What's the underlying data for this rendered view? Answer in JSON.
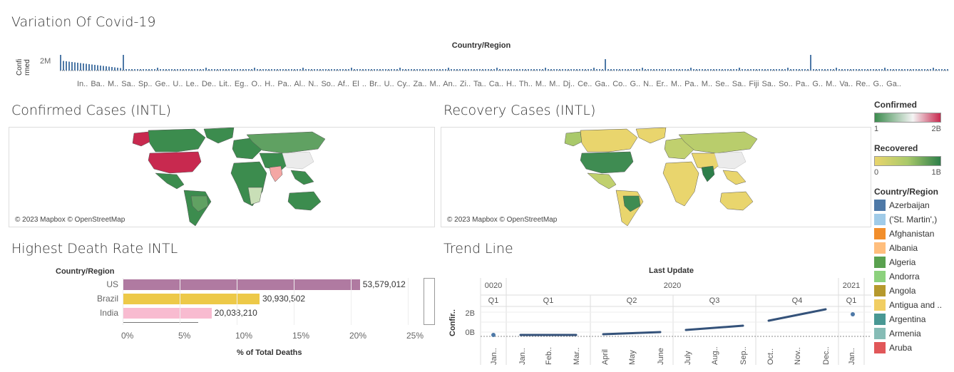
{
  "dashboard": {
    "title": "Variation Of Covid-19"
  },
  "top_chart": {
    "header": "Country/Region",
    "y_axis_label": "Confi rmed",
    "y_tick": "2M",
    "category_labels": "In.. Ba.. M.. Sa.. Sp.. Ge.. U.. Le.. De.. Lit.. Eg.. O.. H.. Pa.. Al.. N.. So.. Af.. El .. Br.. U.. Cy.. Za.. M.. An.. Zi.. Ta.. Ca.. H.. Th.. M.. M.. Dj.. Ce.. Ga.. Co.. G.. N.. Er.. M.. Pa.. M.. Se.. Sa.. Fiji Sa.. So.. Pa.. G.. M.. Va.. Re.. G.. Ga..",
    "bar_color": "#4e79a7"
  },
  "confirmed_map": {
    "title": "Confirmed Cases (INTL)",
    "credit": "© 2023 Mapbox © OpenStreetMap"
  },
  "recovery_map": {
    "title": "Recovery Cases (INTL)",
    "credit": "© 2023 Mapbox © OpenStreetMap"
  },
  "legend": {
    "confirmed": {
      "title": "Confirmed",
      "min": "1",
      "max": "2B",
      "colors": [
        "#3c8c4e",
        "#f4f4f4",
        "#c8294f"
      ]
    },
    "recovered": {
      "title": "Recovered",
      "min": "0",
      "max": "1B",
      "colors": [
        "#e9d56d",
        "#a9c96a",
        "#2e7f4a"
      ]
    },
    "country": {
      "title": "Country/Region",
      "items": [
        {
          "label": " Azerbaijan",
          "color": "#4e79a7"
        },
        {
          "label": "('St. Martin',)",
          "color": "#a0cbe8"
        },
        {
          "label": "Afghanistan",
          "color": "#f28e2b"
        },
        {
          "label": "Albania",
          "color": "#ffbe7d"
        },
        {
          "label": "Algeria",
          "color": "#59a14f"
        },
        {
          "label": "Andorra",
          "color": "#8cd17d"
        },
        {
          "label": "Angola",
          "color": "#b6992d"
        },
        {
          "label": "Antigua and ..",
          "color": "#f1ce63"
        },
        {
          "label": "Argentina",
          "color": "#499894"
        },
        {
          "label": "Armenia",
          "color": "#86bcb6"
        },
        {
          "label": "Aruba",
          "color": "#e15759"
        }
      ]
    }
  },
  "death_rate": {
    "title": "Highest Death Rate INTL",
    "column_header": "Country/Region",
    "x_axis_label": "% of Total Deaths",
    "x_ticks": [
      "0%",
      "5%",
      "10%",
      "15%",
      "20%",
      "25%"
    ],
    "rows": [
      {
        "country": "US",
        "value_label": "53,579,012",
        "share": 20.8,
        "color": "#b07aa1"
      },
      {
        "country": "Brazil",
        "value_label": "30,930,502",
        "share": 12.0,
        "color": "#edc948"
      },
      {
        "country": "India",
        "value_label": "20,038,210",
        "share": 7.8,
        "color": "#f8bbd0"
      }
    ]
  },
  "trend": {
    "title": "Trend Line",
    "header": "Last Update",
    "y_axis_label": "Confir..",
    "y_ticks": [
      "2B",
      "0B"
    ],
    "years": [
      "0020",
      "2020",
      "2021"
    ],
    "quarters": [
      "Q1",
      "Q1",
      "Q2",
      "Q3",
      "Q4",
      "Q1"
    ],
    "months": [
      "Jan..",
      "Jan..",
      "Feb..",
      "Mar..",
      "April",
      "May",
      "June",
      "July",
      "Aug..",
      "Sep..",
      "Oct..",
      "Nov..",
      "Dec..",
      "Jan.."
    ],
    "line_color": "#34527a"
  }
}
